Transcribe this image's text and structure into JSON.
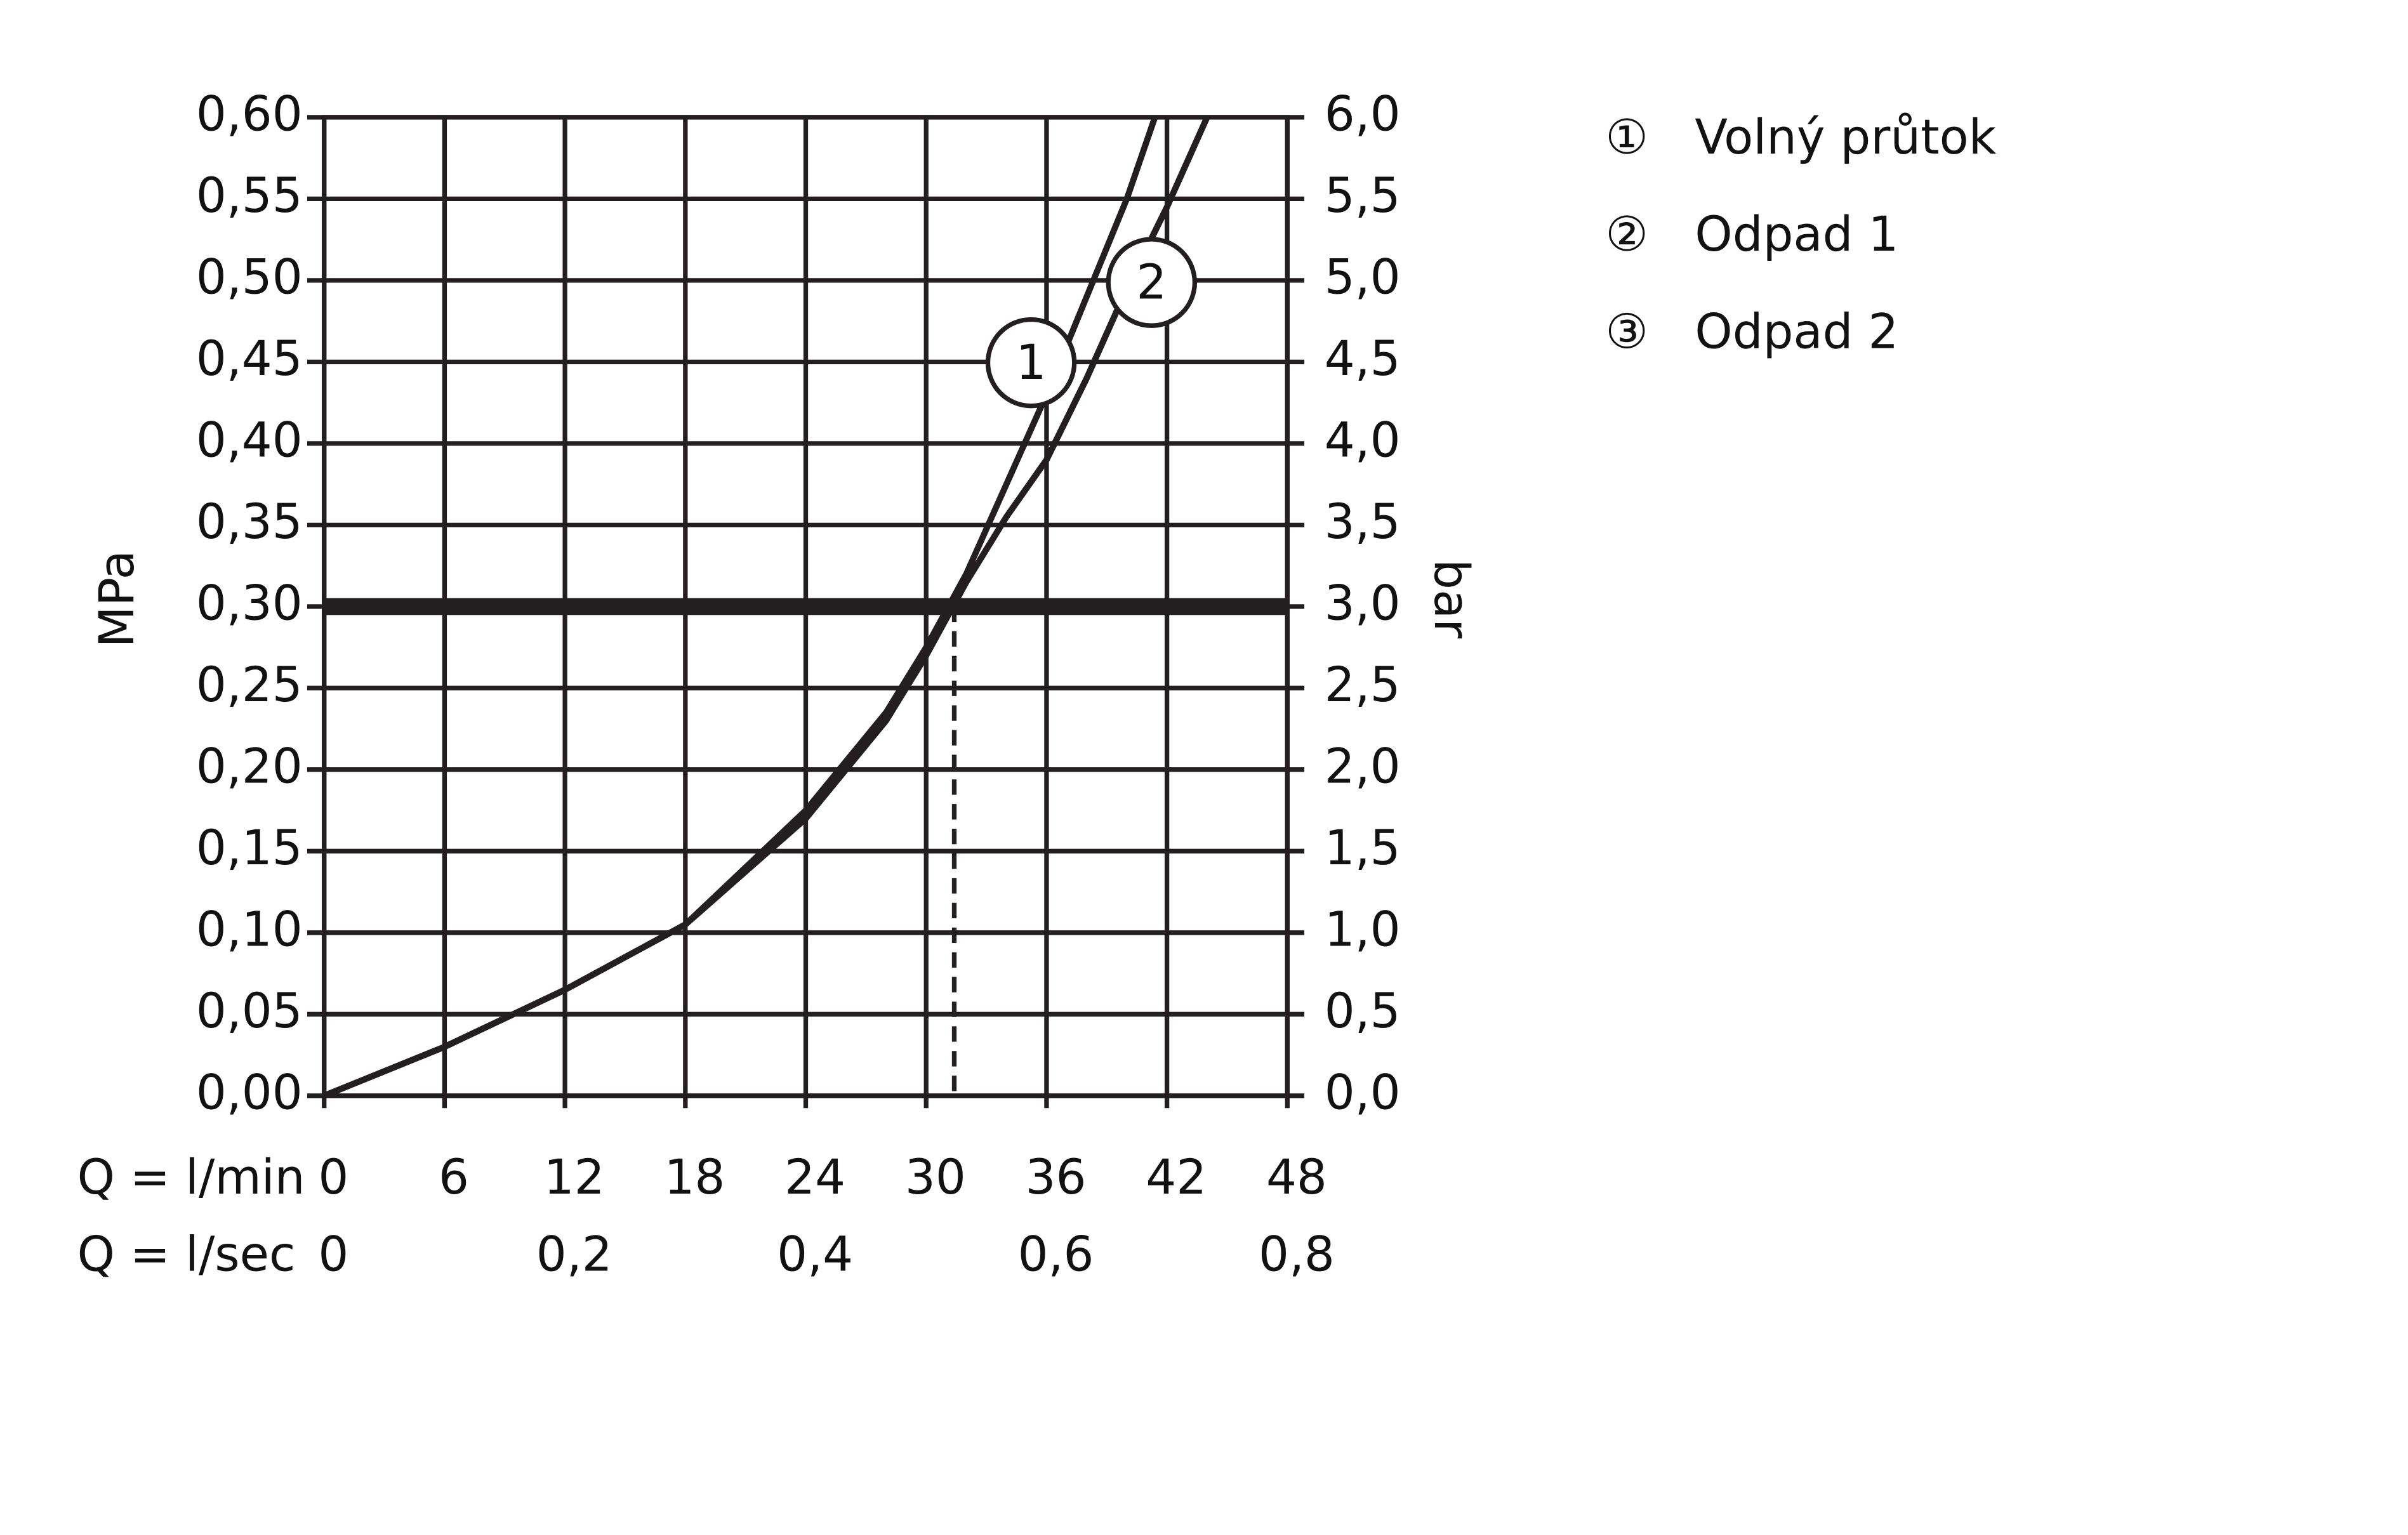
{
  "chart_data": {
    "type": "line",
    "y_label": "MPa",
    "y2_label": "bar",
    "x_label": "Q = l/min",
    "x2_label": "Q = l/sec",
    "xlim": [
      0,
      48
    ],
    "xticks": [
      0,
      6,
      12,
      18,
      24,
      30,
      36,
      42,
      48
    ],
    "x2lim": [
      0,
      0.8
    ],
    "x2ticks": [
      0,
      {
        "value": 0.2,
        "label": "0,2"
      },
      {
        "value": 0.4,
        "label": "0,4"
      },
      {
        "value": 0.6,
        "label": "0,6"
      },
      {
        "value": 0.8,
        "label": "0,8"
      }
    ],
    "ylim": [
      0,
      0.6
    ],
    "yticks": [
      {
        "value": 0,
        "label": "0,00"
      },
      {
        "value": 0.05,
        "label": "0,05"
      },
      {
        "value": 0.1,
        "label": "0,10"
      },
      {
        "value": 0.15,
        "label": "0,15"
      },
      {
        "value": 0.2,
        "label": "0,20"
      },
      {
        "value": 0.25,
        "label": "0,25"
      },
      {
        "value": 0.3,
        "label": "0,30"
      },
      {
        "value": 0.35,
        "label": "0,35"
      },
      {
        "value": 0.4,
        "label": "0,40"
      },
      {
        "value": 0.45,
        "label": "0,45"
      },
      {
        "value": 0.5,
        "label": "0,50"
      },
      {
        "value": 0.55,
        "label": "0,55"
      },
      {
        "value": 0.6,
        "label": "0,60"
      }
    ],
    "y2lim": [
      0,
      6
    ],
    "y2ticks": [
      {
        "value": 0,
        "label": "0,0"
      },
      {
        "value": 0.5,
        "label": "0,5"
      },
      {
        "value": 1,
        "label": "1,0"
      },
      {
        "value": 1.5,
        "label": "1,5"
      },
      {
        "value": 2,
        "label": "2,0"
      },
      {
        "value": 2.5,
        "label": "2,5"
      },
      {
        "value": 3,
        "label": "3,0"
      },
      {
        "value": 3.5,
        "label": "3,5"
      },
      {
        "value": 4,
        "label": "4,0"
      },
      {
        "value": 4.5,
        "label": "4,5"
      },
      {
        "value": 5,
        "label": "5,0"
      },
      {
        "value": 5.5,
        "label": "5,5"
      },
      {
        "value": 6,
        "label": "6,0"
      }
    ],
    "grid": true,
    "reference": {
      "y": 0.3,
      "x": 31.4
    },
    "series": [
      {
        "name": "Volný průtok",
        "symbol": "①",
        "curve_label": "1",
        "color": "#231f20",
        "x": [
          0,
          6,
          12,
          18,
          24,
          28,
          30,
          32,
          34,
          36,
          38,
          40,
          41.4
        ],
        "values": [
          0,
          0.03,
          0.065,
          0.105,
          0.175,
          0.235,
          0.275,
          0.32,
          0.375,
          0.43,
          0.49,
          0.55,
          0.6
        ]
      },
      {
        "name": "Odpad 1",
        "symbol": "②",
        "curve_label": "2",
        "color": "#231f20",
        "x": [
          0,
          6,
          12,
          18,
          24,
          28,
          30,
          32,
          34,
          36,
          38,
          40,
          42,
          44
        ],
        "values": [
          0,
          0.03,
          0.065,
          0.105,
          0.17,
          0.23,
          0.27,
          0.315,
          0.355,
          0.39,
          0.44,
          0.495,
          0.545,
          0.6
        ]
      },
      {
        "name": "Odpad 2",
        "symbol": "③",
        "color": "#231f20",
        "x": [
          0,
          6,
          12,
          18,
          24,
          28,
          30,
          32,
          34,
          36,
          38,
          40,
          42,
          44
        ],
        "values": [
          0,
          0.03,
          0.065,
          0.105,
          0.17,
          0.23,
          0.27,
          0.315,
          0.355,
          0.39,
          0.44,
          0.495,
          0.545,
          0.6
        ]
      }
    ]
  }
}
